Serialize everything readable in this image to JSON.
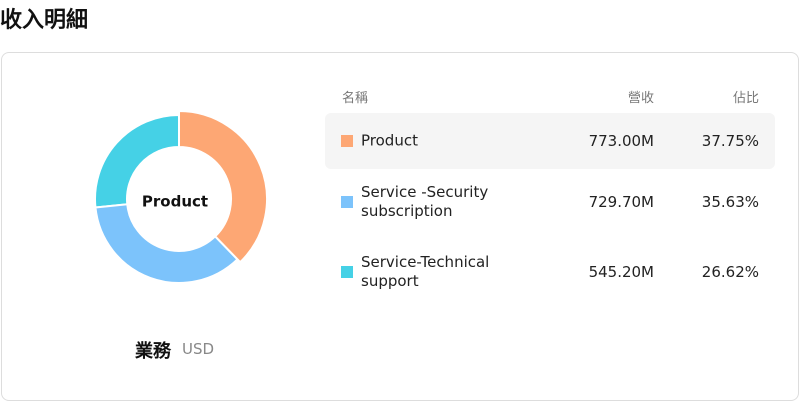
{
  "title": "收入明細",
  "chart_data": {
    "type": "pie",
    "donut": true,
    "categories": [
      "Product",
      "Service -Security subscription",
      "Service-Technical support"
    ],
    "values": [
      37.75,
      35.63,
      26.62
    ],
    "value_labels": [
      "37.75%",
      "35.63%",
      "26.62%"
    ],
    "colors": [
      "#fda774",
      "#7cc3fb",
      "#45d1e6"
    ],
    "caption": "業務",
    "unit": "USD"
  },
  "table": {
    "headers": [
      "名稱",
      "營收",
      "佔比"
    ],
    "revenue": [
      "773.00M",
      "729.70M",
      "545.20M"
    ]
  }
}
